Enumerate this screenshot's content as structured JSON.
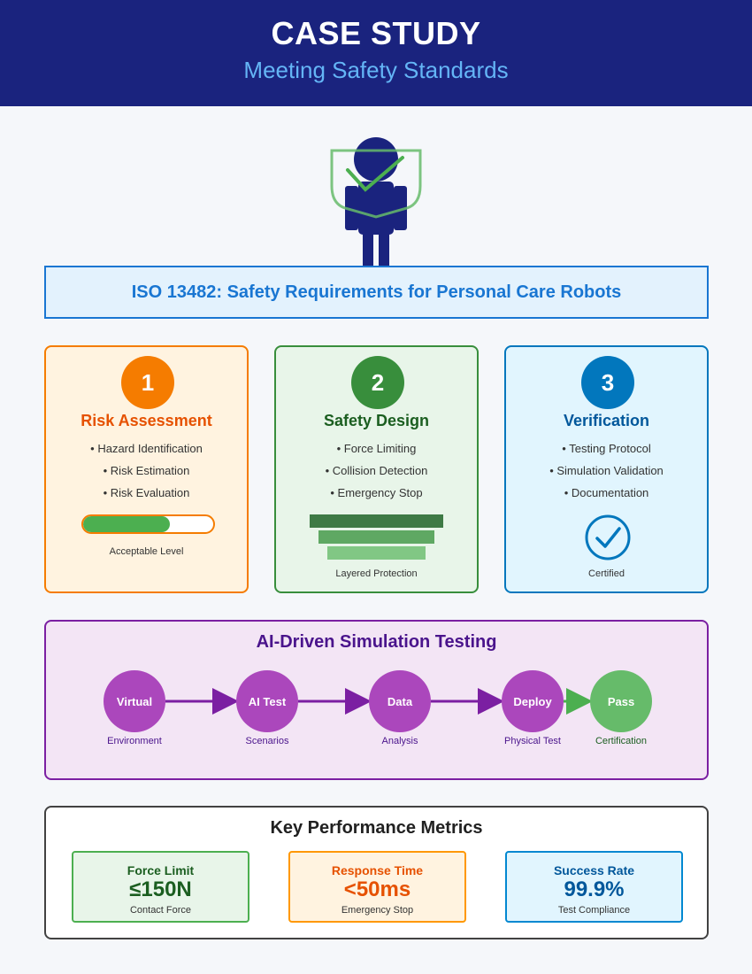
{
  "header": {
    "title": "CASE STUDY",
    "subtitle": "Meeting Safety Standards"
  },
  "hero": {
    "icon": "robot-shield-icon"
  },
  "banner": {
    "text": "ISO 13482: Safety Requirements for Personal Care Robots"
  },
  "cards": [
    {
      "number": "1",
      "title": "Risk Assessment",
      "items": [
        "• Hazard Identification",
        "• Risk Estimation",
        "• Risk Evaluation"
      ],
      "caption": "Acceptable Level",
      "gauge_level": 0.67,
      "color": "#f57c00"
    },
    {
      "number": "2",
      "title": "Safety Design",
      "items": [
        "• Force Limiting",
        "• Collision Detection",
        "• Emergency Stop"
      ],
      "caption": "Layered Protection",
      "color": "#388e3c"
    },
    {
      "number": "3",
      "title": "Verification",
      "items": [
        "• Testing Protocol",
        "• Simulation Validation",
        "• Documentation"
      ],
      "caption": "Certified",
      "icon": "checkmark-circle-icon",
      "color": "#0277bd"
    }
  ],
  "simulation": {
    "title": "AI-Driven Simulation Testing",
    "steps": [
      {
        "label": "Virtual",
        "caption": "Environment"
      },
      {
        "label": "AI Test",
        "caption": "Scenarios"
      },
      {
        "label": "Data",
        "caption": "Analysis"
      },
      {
        "label": "Deploy",
        "caption": "Physical Test"
      },
      {
        "label": "Pass",
        "caption": "Certification"
      }
    ]
  },
  "metrics": {
    "title": "Key Performance Metrics",
    "items": [
      {
        "label": "Force Limit",
        "value": "≤150N",
        "sub": "Contact Force"
      },
      {
        "label": "Response Time",
        "value": "<50ms",
        "sub": "Emergency Stop"
      },
      {
        "label": "Success Rate",
        "value": "99.9%",
        "sub": "Test Compliance"
      }
    ]
  }
}
